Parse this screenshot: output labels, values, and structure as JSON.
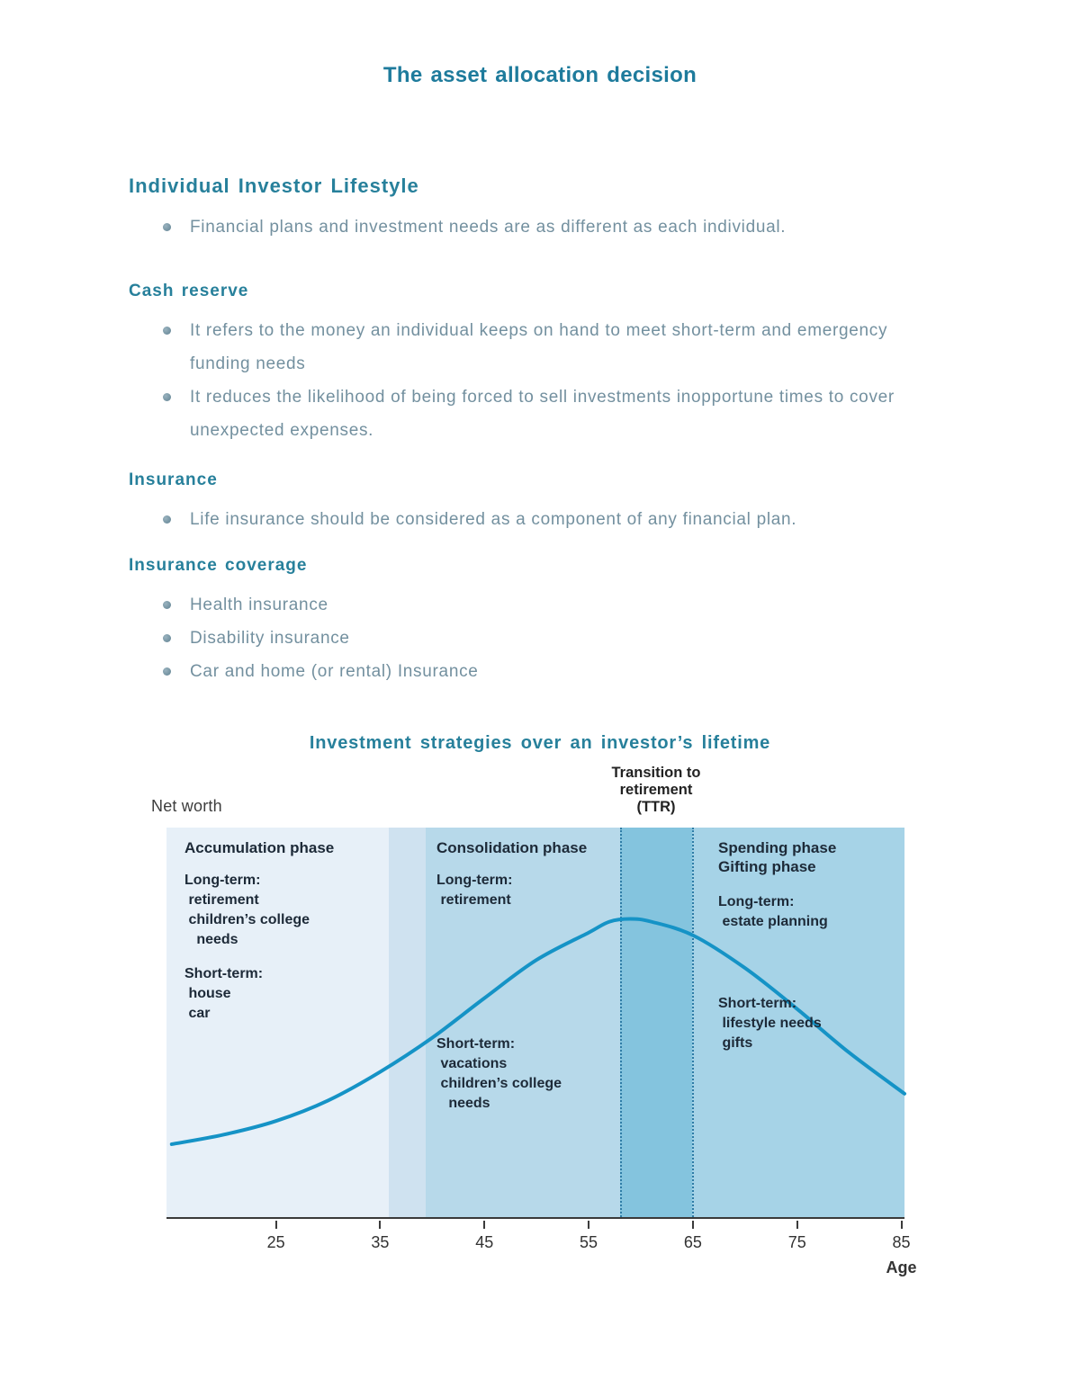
{
  "page": {
    "title": "The asset allocation decision",
    "accent_color": "#27809b",
    "body_text_color": "#73909f"
  },
  "sections": [
    {
      "heading": "Individual Investor Lifestyle",
      "bullets": [
        "Financial plans and investment needs are as different as each individual."
      ]
    },
    {
      "heading": "Cash reserve",
      "bullets": [
        "It refers to the money an individual keeps on hand to meet short-term and emergency funding needs",
        "It reduces the likelihood of being forced to sell investments inopportune times to cover unexpected expenses."
      ]
    },
    {
      "heading": "Insurance",
      "bullets": [
        "Life insurance should be considered as a component of any financial plan."
      ]
    },
    {
      "heading": "Insurance coverage",
      "bullets": [
        "Health insurance",
        "Disability insurance",
        "Car and home (or rental) Insurance"
      ]
    }
  ],
  "figure": {
    "title": "Investment strategies over an investor’s lifetime",
    "net_worth_label": "Net worth",
    "ttr_annotation": "Transition to\nretirement\n(TTR)",
    "age_label": "Age",
    "phases_text": {
      "accumulation": {
        "name": "Accumulation phase",
        "long_term": "Long-term:\n retirement\n children’s college\n   needs",
        "short_term": "Short-term:\n house\n car"
      },
      "consolidation": {
        "name": "Consolidation phase",
        "long_term": "Long-term:\n retirement",
        "short_term": "Short-term:\n vacations\n children’s college\n   needs"
      },
      "spending": {
        "name": "Spending phase\nGifting phase",
        "long_term": "Long-term:\n estate planning",
        "short_term": "Short-term:\n lifestyle needs\n gifts"
      }
    }
  },
  "chart_data": {
    "type": "line",
    "title": "Investment strategies over an investor’s lifetime",
    "xlabel": "Age",
    "ylabel": "Net worth",
    "x_range": [
      14.5,
      85.3
    ],
    "x_ticks": [
      25,
      35,
      45,
      55,
      65,
      75,
      85
    ],
    "x": [
      15,
      20,
      25,
      30,
      35,
      40,
      45,
      50,
      55,
      57,
      59,
      61,
      65,
      70,
      75,
      80,
      85.3
    ],
    "values": [
      0.175,
      0.21,
      0.26,
      0.335,
      0.44,
      0.565,
      0.71,
      0.85,
      0.95,
      0.99,
      1.0,
      0.99,
      0.94,
      0.82,
      0.67,
      0.51,
      0.36
    ],
    "curve_color": "#1593c6",
    "grid": false,
    "legend": "none",
    "phases": [
      {
        "label": "Accumulation phase",
        "start": 14.5,
        "end": 35.8,
        "color": "#e7f0f8"
      },
      {
        "label": "Accumulation–Consolidation transition",
        "start": 35.8,
        "end": 39.4,
        "color": "#cfe2f0"
      },
      {
        "label": "Consolidation phase",
        "start": 39.4,
        "end": 58.0,
        "color": "#b7d9ea"
      },
      {
        "label": "Transition to retirement (TTR)",
        "start": 58.0,
        "end": 64.9,
        "color": "#84c4de",
        "dotted_boundaries": true
      },
      {
        "label": "Spending / Gifting phase",
        "start": 64.9,
        "end": 85.3,
        "color": "#a6d3e7"
      }
    ]
  }
}
